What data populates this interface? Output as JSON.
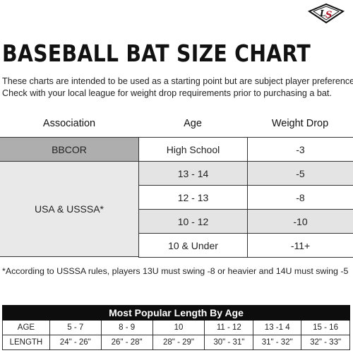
{
  "brand": {
    "logo_text": "LS"
  },
  "title": "BASEBALL BAT SIZE CHART",
  "intro": [
    "These charts are intended to be used as a starting point but are subject  player preference.",
    "Check with your local league for weight drop requirements prior to purchasing a bat."
  ],
  "size_chart": {
    "headers": {
      "association": "Association",
      "age": "Age",
      "weight_drop": "Weight Drop"
    },
    "associations": [
      "BBCOR",
      "USA & USSSA*"
    ],
    "rows": [
      {
        "age": "High School",
        "drop": "-3"
      },
      {
        "age": "13 - 14",
        "drop": "-5"
      },
      {
        "age": "12 - 13",
        "drop": "-8"
      },
      {
        "age": "10 - 12",
        "drop": "-10"
      },
      {
        "age": "10 & Under",
        "drop": "-11+"
      }
    ]
  },
  "footnote": "*According to USSSA rules, players 13U must swing -8 or heavier  and 14U must swing -5",
  "length_table": {
    "title": "Most Popular Length By Age",
    "age_row": [
      "AGE",
      "5 - 7",
      "8 - 9",
      "10",
      "11 - 12",
      "13 -1 4",
      "15 - 16"
    ],
    "length_row": [
      "LENGTH",
      "24\" - 26\"",
      "26\" - 28\"",
      "28\" - 29\"",
      "30\" - 31\"",
      "31\" - 32\"",
      "32\" - 33\""
    ]
  }
}
